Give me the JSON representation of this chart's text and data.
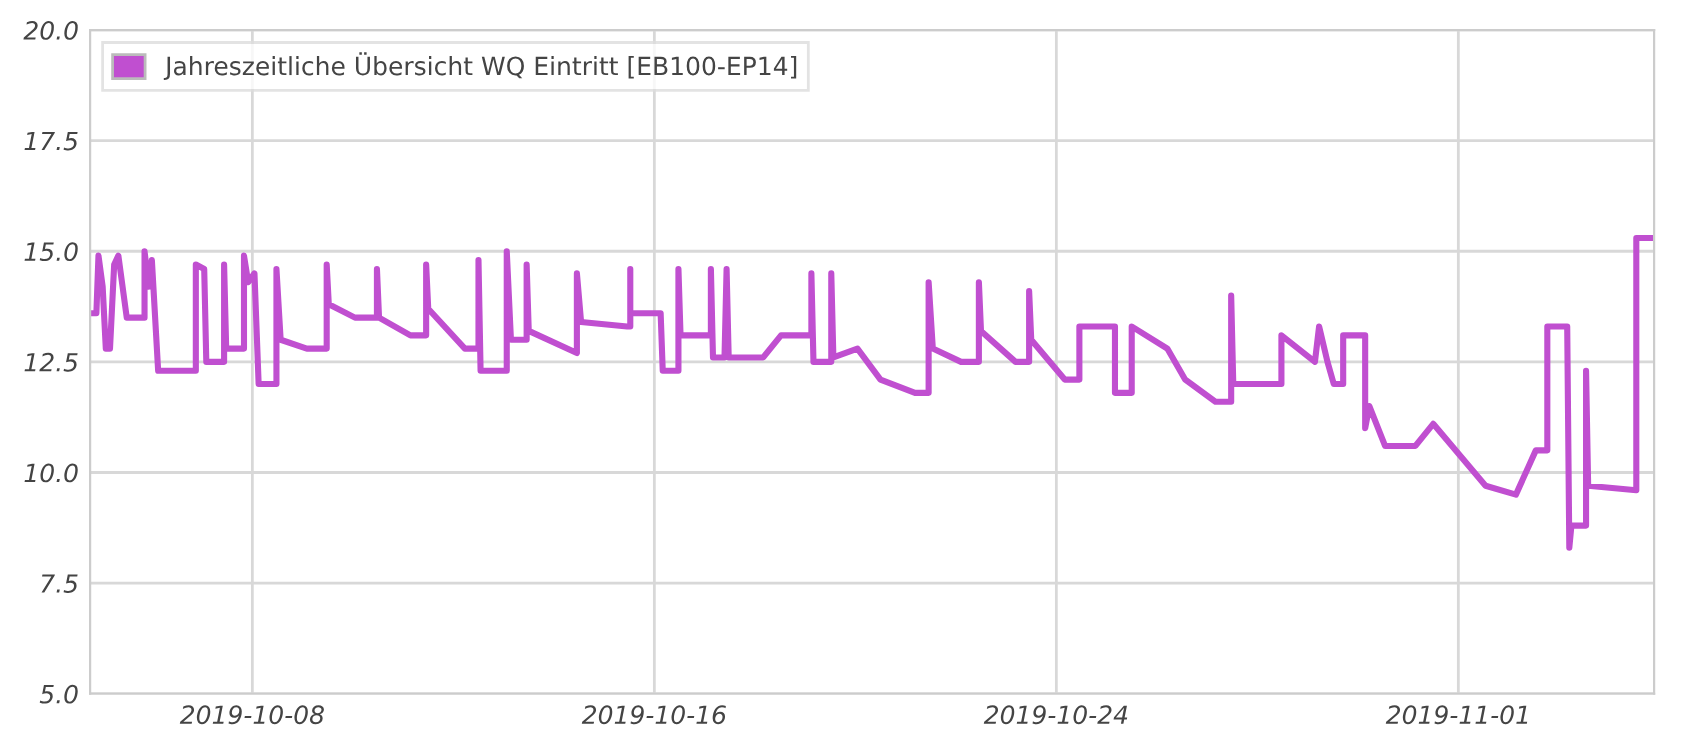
{
  "chart_data": {
    "type": "line",
    "series": [
      {
        "name": "Jahreszeitliche Übersicht WQ Eintritt [EB100-EP14]",
        "color": "#c04fd0",
        "x": [
          "2019-10-04T18:30",
          "2019-10-04T21:30",
          "2019-10-04T22:30",
          "2019-10-05T00:30",
          "2019-10-05T02:00",
          "2019-10-05T04:00",
          "2019-10-05T06:00",
          "2019-10-05T08:00",
          "2019-10-05T12:00",
          "2019-10-05T20:30",
          "2019-10-05T20:30",
          "2019-10-05T22:30",
          "2019-10-06T00:00",
          "2019-10-06T03:00",
          "2019-10-06T21:00",
          "2019-10-06T21:00",
          "2019-10-07T01:00",
          "2019-10-07T02:00",
          "2019-10-07T10:30",
          "2019-10-07T10:30",
          "2019-10-07T11:30",
          "2019-10-07T20:00",
          "2019-10-07T20:00",
          "2019-10-07T22:00",
          "2019-10-08T01:00",
          "2019-10-08T03:00",
          "2019-10-08T11:30",
          "2019-10-08T11:30",
          "2019-10-08T13:30",
          "2019-10-09T02:00",
          "2019-10-09T11:30",
          "2019-10-09T11:30",
          "2019-10-09T12:30",
          "2019-10-10T01:00",
          "2019-10-10T11:30",
          "2019-10-10T11:30",
          "2019-10-10T12:30",
          "2019-10-11T03:30",
          "2019-10-11T11:00",
          "2019-10-11T11:00",
          "2019-10-11T12:00",
          "2019-10-12T05:30",
          "2019-10-12T12:00",
          "2019-10-12T12:00",
          "2019-10-12T13:00",
          "2019-10-13T01:30",
          "2019-10-13T01:30",
          "2019-10-13T03:30",
          "2019-10-13T11:00",
          "2019-10-13T11:00",
          "2019-10-13T12:00",
          "2019-10-14T11:00",
          "2019-10-14T11:00",
          "2019-10-14T13:00",
          "2019-10-15T11:00",
          "2019-10-15T12:30",
          "2019-10-15T12:30",
          "2019-10-15T12:30",
          "2019-10-16T03:00",
          "2019-10-16T04:00",
          "2019-10-16T11:30",
          "2019-10-16T11:30",
          "2019-10-16T12:30",
          "2019-10-17T03:00",
          "2019-10-17T03:00",
          "2019-10-17T04:00",
          "2019-10-17T09:30",
          "2019-10-17T10:30",
          "2019-10-17T11:30",
          "2019-10-18T04:00",
          "2019-10-18T12:30",
          "2019-10-19T03:00",
          "2019-10-19T03:00",
          "2019-10-19T04:00",
          "2019-10-19T12:30",
          "2019-10-19T12:30",
          "2019-10-19T13:30",
          "2019-10-20T01:00",
          "2019-10-20T12:00",
          "2019-10-21T04:30",
          "2019-10-21T11:00",
          "2019-10-21T11:00",
          "2019-10-21T13:00",
          "2019-10-22T02:30",
          "2019-10-22T11:00",
          "2019-10-22T11:00",
          "2019-10-22T12:00",
          "2019-10-23T04:30",
          "2019-10-23T11:00",
          "2019-10-23T11:00",
          "2019-10-23T12:00",
          "2019-10-24T04:00",
          "2019-10-24T11:00",
          "2019-10-24T11:00",
          "2019-10-25T04:00",
          "2019-10-25T04:00",
          "2019-10-25T12:00",
          "2019-10-25T12:00",
          "2019-10-26T05:00",
          "2019-10-26T13:30",
          "2019-10-27T04:00",
          "2019-10-27T11:30",
          "2019-10-27T11:30",
          "2019-10-27T12:30",
          "2019-10-28T11:30",
          "2019-10-28T11:30",
          "2019-10-29T03:30",
          "2019-10-29T05:30",
          "2019-10-29T09:30",
          "2019-10-29T12:30",
          "2019-10-29T17:00",
          "2019-10-29T17:00",
          "2019-10-30T03:30",
          "2019-10-30T03:30",
          "2019-10-30T05:30",
          "2019-10-30T13:00",
          "2019-10-31T03:30",
          "2019-10-31T12:00",
          "2019-11-01T13:00",
          "2019-11-02T03:30",
          "2019-11-02T13:00",
          "2019-11-02T18:30",
          "2019-11-02T18:30",
          "2019-11-03T04:00",
          "2019-11-03T05:00",
          "2019-11-03T06:00",
          "2019-11-03T13:00",
          "2019-11-03T13:00",
          "2019-11-03T14:00",
          "2019-11-04T13:00",
          "2019-11-04T13:00",
          "2019-11-04T20:30"
        ],
        "values": [
          13.6,
          13.6,
          14.9,
          14.2,
          12.8,
          12.8,
          14.7,
          14.9,
          13.5,
          13.5,
          15.0,
          14.2,
          14.8,
          12.3,
          12.3,
          14.7,
          14.6,
          12.5,
          12.5,
          14.7,
          12.8,
          12.8,
          14.9,
          14.3,
          14.5,
          12.0,
          12.0,
          14.6,
          13.0,
          12.8,
          12.8,
          14.7,
          13.8,
          13.5,
          13.5,
          14.6,
          13.5,
          13.1,
          13.1,
          14.7,
          13.7,
          12.8,
          12.8,
          14.8,
          12.3,
          12.3,
          15.0,
          13.0,
          13.0,
          14.7,
          13.2,
          12.7,
          14.5,
          13.4,
          13.3,
          13.3,
          14.6,
          13.6,
          13.6,
          12.3,
          12.3,
          14.6,
          13.1,
          13.1,
          14.6,
          12.6,
          12.6,
          14.6,
          12.6,
          12.6,
          13.1,
          13.1,
          14.5,
          12.5,
          12.5,
          14.5,
          12.6,
          12.8,
          12.1,
          11.8,
          11.8,
          14.3,
          12.8,
          12.5,
          12.5,
          14.3,
          13.2,
          12.5,
          12.5,
          14.1,
          13.0,
          12.1,
          12.1,
          13.3,
          13.3,
          11.8,
          11.8,
          13.3,
          12.8,
          12.1,
          11.6,
          11.6,
          14.0,
          12.0,
          12.0,
          13.1,
          12.5,
          13.3,
          12.5,
          12.0,
          12.0,
          13.1,
          13.1,
          11.0,
          11.5,
          10.6,
          10.6,
          11.1,
          9.7,
          9.5,
          10.5,
          10.5,
          13.3,
          13.3,
          8.3,
          8.8,
          8.8,
          12.3,
          9.7,
          9.6,
          15.3,
          15.3
        ]
      }
    ],
    "xlim": [
      "2019-10-04T18:30",
      "2019-11-04T21:30"
    ],
    "xticks": [
      "2019-10-08",
      "2019-10-16",
      "2019-10-24",
      "2019-11-01"
    ],
    "ylim": [
      5.0,
      20.0
    ],
    "yticks": [
      {
        "value": 5,
        "label": "5.0"
      },
      {
        "value": 7.5,
        "label": "7.5"
      },
      {
        "value": 10,
        "label": "10.0"
      },
      {
        "value": 12.5,
        "label": "12.5"
      },
      {
        "value": 15,
        "label": "15.0"
      },
      {
        "value": 17.5,
        "label": "17.5"
      },
      {
        "value": 20,
        "label": "20.0"
      }
    ],
    "grid": true,
    "legend": "top left",
    "marker": "none",
    "line_style": "solid"
  }
}
